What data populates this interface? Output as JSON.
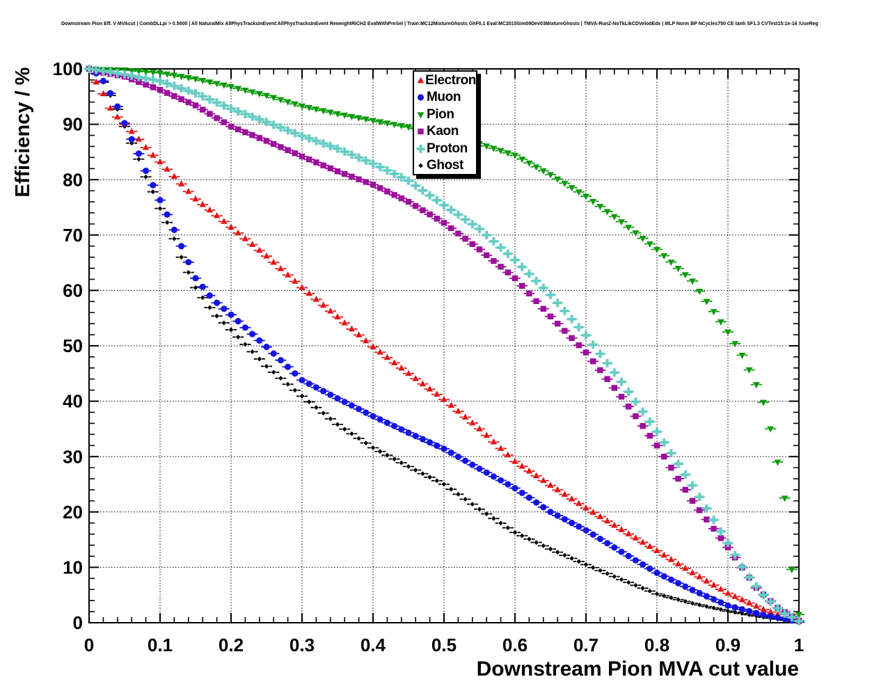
{
  "title": {
    "text": "Downstream Pion Eff. V MVAcut | CombDLLpi > 0.5000 | All NaturalMix AllPhysTracksInEvent:AllPhysTracksInEvent ReweightRICH2 EvalWithPreSel | Train:MC12MixtureGhosts GhF0.1 Eval:MC2015Sim09Dev03MixtureGhosts | TMVA-Run2-NoTkLikCDVelodEdx | MLP Norm BP NCycles750 CE tanh SF1.3 CVTest15:1e-16 !UseReg"
  },
  "chart_data": {
    "type": "scatter",
    "title": "",
    "xlabel": "Downstream Pion MVA cut value",
    "ylabel": "Efficiency / %",
    "xlim": [
      0,
      1
    ],
    "ylim": [
      0,
      100
    ],
    "grid": "dotted",
    "legend_position": "top-center",
    "marker_step": 0.01,
    "x_ticks": {
      "values": [
        0,
        0.1,
        0.2,
        0.3,
        0.4,
        0.5,
        0.6,
        0.7,
        0.8,
        0.9,
        1
      ],
      "labels": [
        "0",
        "0.1",
        "0.2",
        "0.3",
        "0.4",
        "0.5",
        "0.6",
        "0.7",
        "0.8",
        "0.9",
        "1"
      ],
      "minor_step": 0.02
    },
    "y_ticks": {
      "values": [
        0,
        10,
        20,
        30,
        40,
        50,
        60,
        70,
        80,
        90,
        100
      ],
      "labels": [
        "0",
        "10",
        "20",
        "30",
        "40",
        "50",
        "60",
        "70",
        "80",
        "90",
        "100"
      ],
      "minor_step": 2
    },
    "series": [
      {
        "name": "Electron",
        "marker": "triangle-up",
        "color": "#e31414",
        "size": 5.2,
        "x": [
          0,
          0.01,
          0.02,
          0.03,
          0.04,
          0.05,
          0.06,
          0.07,
          0.08,
          0.09,
          0.1,
          0.125,
          0.15,
          0.175,
          0.2,
          0.25,
          0.3,
          0.35,
          0.4,
          0.45,
          0.5,
          0.55,
          0.6,
          0.65,
          0.7,
          0.75,
          0.8,
          0.85,
          0.9,
          0.95,
          0.98,
          1.0
        ],
        "y": [
          100,
          97.6,
          95.5,
          92.9,
          91.3,
          90.0,
          88.7,
          87.3,
          85.8,
          84.4,
          83.2,
          79.9,
          76.5,
          74.0,
          71.4,
          66.2,
          60.5,
          55.2,
          49.8,
          45.0,
          40.3,
          35.0,
          29.1,
          24.8,
          20.7,
          16.8,
          13.0,
          9.0,
          5.3,
          2.4,
          1.0,
          0.3
        ]
      },
      {
        "name": "Muon",
        "marker": "circle",
        "color": "#1414e0",
        "size": 4.6,
        "x": [
          0,
          0.01,
          0.02,
          0.03,
          0.04,
          0.05,
          0.06,
          0.07,
          0.08,
          0.09,
          0.1,
          0.115,
          0.13,
          0.15,
          0.175,
          0.2,
          0.25,
          0.3,
          0.35,
          0.4,
          0.45,
          0.5,
          0.55,
          0.6,
          0.65,
          0.7,
          0.75,
          0.8,
          0.85,
          0.9,
          0.95,
          1.0
        ],
        "y": [
          100,
          99.2,
          97.8,
          95.6,
          93.2,
          90.2,
          87.3,
          84.7,
          81.6,
          79.0,
          76.3,
          72.4,
          68.0,
          62.2,
          58.3,
          55.6,
          49.8,
          43.8,
          40.5,
          37.3,
          34.3,
          31.4,
          27.8,
          24.3,
          20.0,
          16.7,
          12.8,
          9.0,
          5.9,
          3.1,
          1.4,
          0.2
        ]
      },
      {
        "name": "Pion",
        "marker": "triangle-down",
        "color": "#0a9a0a",
        "size": 5.4,
        "x": [
          0,
          0.02,
          0.05,
          0.1,
          0.15,
          0.2,
          0.25,
          0.3,
          0.35,
          0.4,
          0.45,
          0.5,
          0.55,
          0.6,
          0.65,
          0.7,
          0.75,
          0.8,
          0.85,
          0.9,
          0.92,
          0.94,
          0.95,
          0.96,
          0.97,
          0.98,
          0.99,
          1.0
        ],
        "y": [
          100,
          99.9,
          99.8,
          99.3,
          98.2,
          96.8,
          95.2,
          93.3,
          91.9,
          90.7,
          89.5,
          88.1,
          86.5,
          84.4,
          80.9,
          77.0,
          72.4,
          67.4,
          61.7,
          52.5,
          48.3,
          43.0,
          39.8,
          35.0,
          29.0,
          22.5,
          9.6,
          1.5
        ]
      },
      {
        "name": "Kaon",
        "marker": "square",
        "color": "#9c0f9c",
        "size": 4.2,
        "x": [
          0,
          0.02,
          0.05,
          0.1,
          0.15,
          0.2,
          0.25,
          0.3,
          0.35,
          0.4,
          0.45,
          0.5,
          0.55,
          0.6,
          0.65,
          0.7,
          0.75,
          0.8,
          0.85,
          0.9,
          0.94,
          0.97,
          1.0
        ],
        "y": [
          100,
          99.3,
          98.6,
          96.2,
          93.4,
          89.6,
          87.0,
          84.2,
          81.5,
          79.1,
          76.0,
          72.2,
          67.4,
          62.2,
          55.3,
          48.8,
          40.8,
          32.0,
          22.0,
          13.6,
          6.3,
          2.7,
          0.4
        ]
      },
      {
        "name": "Proton",
        "marker": "cross",
        "color": "#66ccc4",
        "size": 6,
        "x": [
          0,
          0.02,
          0.05,
          0.1,
          0.15,
          0.2,
          0.25,
          0.3,
          0.35,
          0.4,
          0.45,
          0.5,
          0.55,
          0.6,
          0.65,
          0.7,
          0.75,
          0.8,
          0.85,
          0.9,
          0.925,
          0.95,
          0.975,
          1.0
        ],
        "y": [
          100,
          99.6,
          99.0,
          97.8,
          95.6,
          92.8,
          90.4,
          87.9,
          85.6,
          82.9,
          79.8,
          75.4,
          71.1,
          65.5,
          59.2,
          51.9,
          43.5,
          34.5,
          24.8,
          14.4,
          9.0,
          5.0,
          2.0,
          0.3
        ]
      },
      {
        "name": "Ghost",
        "marker": "diamond",
        "color": "#000000",
        "size": 3.4,
        "x": [
          0,
          0.01,
          0.02,
          0.03,
          0.04,
          0.05,
          0.06,
          0.07,
          0.08,
          0.09,
          0.1,
          0.115,
          0.13,
          0.15,
          0.175,
          0.2,
          0.25,
          0.3,
          0.35,
          0.4,
          0.45,
          0.5,
          0.55,
          0.6,
          0.65,
          0.7,
          0.75,
          0.8,
          0.85,
          0.9,
          0.95,
          1.0
        ],
        "y": [
          100,
          99.1,
          97.6,
          95.2,
          92.7,
          89.6,
          86.6,
          83.7,
          80.5,
          77.8,
          74.8,
          71.0,
          66.0,
          60.5,
          56.0,
          52.9,
          46.3,
          40.9,
          35.8,
          31.6,
          28.2,
          25.0,
          20.5,
          16.3,
          13.3,
          10.5,
          7.8,
          5.2,
          3.5,
          2.1,
          1.0,
          0.1
        ]
      }
    ],
    "legend_items": [
      "Electron",
      "Muon",
      "Pion",
      "Kaon",
      "Proton",
      "Ghost"
    ]
  }
}
